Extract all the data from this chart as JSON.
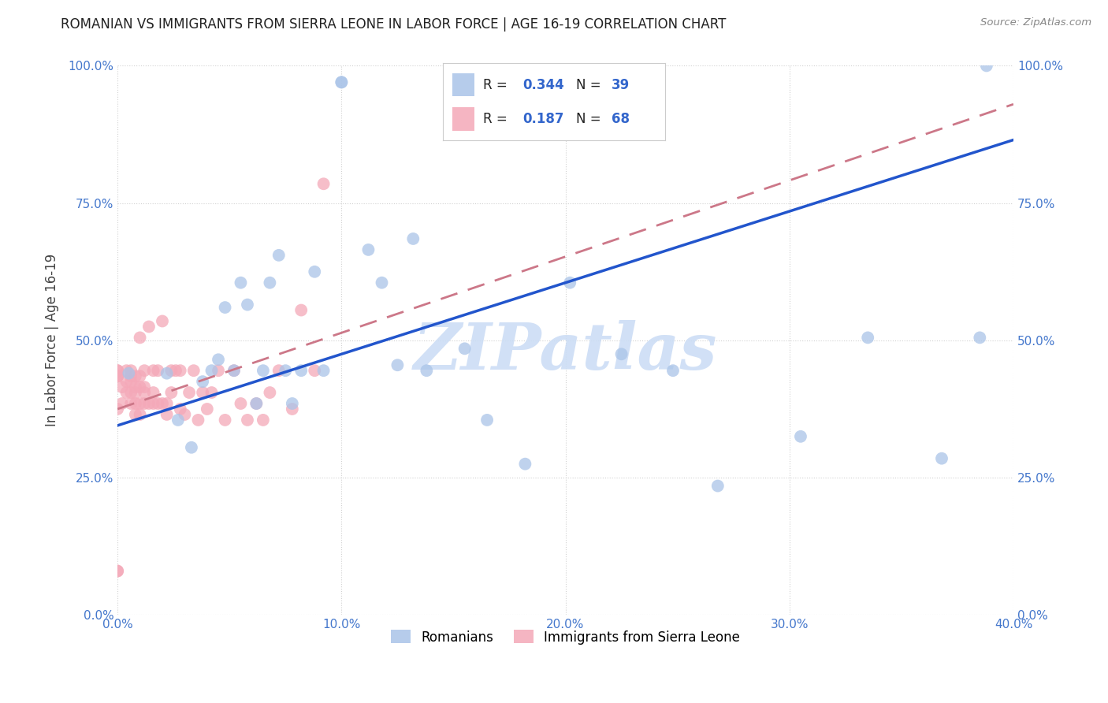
{
  "title": "ROMANIAN VS IMMIGRANTS FROM SIERRA LEONE IN LABOR FORCE | AGE 16-19 CORRELATION CHART",
  "source": "Source: ZipAtlas.com",
  "ylabel": "In Labor Force | Age 16-19",
  "xlim": [
    0.0,
    0.4
  ],
  "ylim": [
    0.0,
    1.0
  ],
  "xticks": [
    0.0,
    0.1,
    0.2,
    0.3,
    0.4
  ],
  "yticks": [
    0.0,
    0.25,
    0.5,
    0.75,
    1.0
  ],
  "xticklabels": [
    "0.0%",
    "10.0%",
    "20.0%",
    "30.0%",
    "40.0%"
  ],
  "yticklabels": [
    "0.0%",
    "25.0%",
    "50.0%",
    "75.0%",
    "100.0%"
  ],
  "blue_R": 0.344,
  "blue_N": 39,
  "pink_R": 0.187,
  "pink_N": 68,
  "blue_color": "#aac4e8",
  "pink_color": "#f4a8b8",
  "blue_line_color": "#2255cc",
  "pink_line_color": "#cc7788",
  "watermark": "ZIPatlas",
  "legend_romanians": "Romanians",
  "legend_sierra": "Immigrants from Sierra Leone",
  "blue_line_x0": 0.0,
  "blue_line_y0": 0.345,
  "blue_line_x1": 0.4,
  "blue_line_y1": 0.865,
  "pink_line_x0": 0.0,
  "pink_line_y0": 0.375,
  "pink_line_x1": 0.4,
  "pink_line_y1": 0.93,
  "blue_points_x": [
    0.005,
    0.022,
    0.027,
    0.033,
    0.038,
    0.042,
    0.045,
    0.048,
    0.052,
    0.055,
    0.058,
    0.062,
    0.065,
    0.068,
    0.072,
    0.075,
    0.078,
    0.082,
    0.088,
    0.092,
    0.1,
    0.1,
    0.112,
    0.118,
    0.125,
    0.132,
    0.138,
    0.155,
    0.165,
    0.182,
    0.202,
    0.225,
    0.248,
    0.268,
    0.305,
    0.335,
    0.368,
    0.388,
    0.385
  ],
  "blue_points_y": [
    0.44,
    0.44,
    0.355,
    0.305,
    0.425,
    0.445,
    0.465,
    0.56,
    0.445,
    0.605,
    0.565,
    0.385,
    0.445,
    0.605,
    0.655,
    0.445,
    0.385,
    0.445,
    0.625,
    0.445,
    0.97,
    0.97,
    0.665,
    0.605,
    0.455,
    0.685,
    0.445,
    0.485,
    0.355,
    0.275,
    0.605,
    0.475,
    0.445,
    0.235,
    0.325,
    0.505,
    0.285,
    1.0,
    0.505
  ],
  "pink_points_x": [
    0.0,
    0.0,
    0.0,
    0.0,
    0.002,
    0.002,
    0.004,
    0.004,
    0.004,
    0.006,
    0.006,
    0.006,
    0.006,
    0.006,
    0.008,
    0.008,
    0.008,
    0.008,
    0.008,
    0.01,
    0.01,
    0.01,
    0.01,
    0.01,
    0.012,
    0.012,
    0.012,
    0.012,
    0.014,
    0.014,
    0.016,
    0.016,
    0.016,
    0.018,
    0.018,
    0.02,
    0.02,
    0.022,
    0.022,
    0.024,
    0.024,
    0.026,
    0.028,
    0.028,
    0.03,
    0.032,
    0.034,
    0.036,
    0.038,
    0.04,
    0.042,
    0.045,
    0.048,
    0.052,
    0.055,
    0.058,
    0.062,
    0.065,
    0.068,
    0.072,
    0.078,
    0.082,
    0.088,
    0.092,
    0.0,
    0.0,
    0.0,
    0.0
  ],
  "pink_points_y": [
    0.08,
    0.08,
    0.435,
    0.445,
    0.385,
    0.415,
    0.405,
    0.425,
    0.445,
    0.385,
    0.405,
    0.425,
    0.435,
    0.445,
    0.365,
    0.385,
    0.405,
    0.415,
    0.435,
    0.365,
    0.385,
    0.415,
    0.435,
    0.505,
    0.385,
    0.405,
    0.415,
    0.445,
    0.385,
    0.525,
    0.385,
    0.405,
    0.445,
    0.385,
    0.445,
    0.385,
    0.535,
    0.365,
    0.385,
    0.405,
    0.445,
    0.445,
    0.375,
    0.445,
    0.365,
    0.405,
    0.445,
    0.355,
    0.405,
    0.375,
    0.405,
    0.445,
    0.355,
    0.445,
    0.385,
    0.355,
    0.385,
    0.355,
    0.405,
    0.445,
    0.375,
    0.555,
    0.445,
    0.785,
    0.375,
    0.435,
    0.435,
    0.445
  ]
}
